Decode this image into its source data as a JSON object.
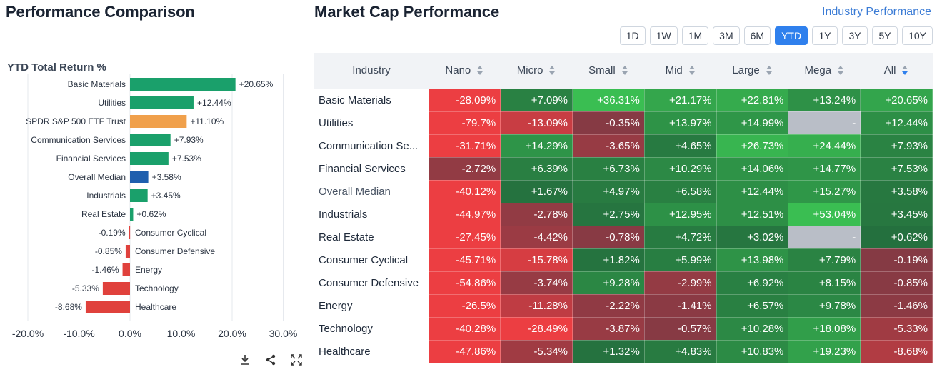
{
  "left": {
    "title": "Performance Comparison",
    "subtitle": "YTD Total Return %",
    "icons": [
      "download-icon",
      "share-icon",
      "expand-icon"
    ]
  },
  "chart_data": {
    "type": "bar",
    "orientation": "horizontal",
    "title": "YTD Total Return %",
    "categories": [
      "Basic Materials",
      "Utilities",
      "SPDR S&P 500 ETF Trust",
      "Communication Services",
      "Financial Services",
      "Overall Median",
      "Industrials",
      "Real Estate",
      "Consumer Cyclical",
      "Consumer Defensive",
      "Energy",
      "Technology",
      "Healthcare"
    ],
    "values": [
      20.65,
      12.44,
      11.1,
      7.93,
      7.53,
      3.58,
      3.45,
      0.62,
      -0.19,
      -0.85,
      -1.46,
      -5.33,
      -8.68
    ],
    "value_labels": [
      "+20.65%",
      "+12.44%",
      "+11.10%",
      "+7.93%",
      "+7.53%",
      "+3.58%",
      "+3.45%",
      "+0.62%",
      "-0.19%",
      "-0.85%",
      "-1.46%",
      "-5.33%",
      "-8.68%"
    ],
    "bar_colors": [
      "#1aa06b",
      "#1aa06b",
      "#f0a04b",
      "#1aa06b",
      "#1aa06b",
      "#1f5fae",
      "#1aa06b",
      "#1aa06b",
      "#e0413c",
      "#e0413c",
      "#e0413c",
      "#e0413c",
      "#e0413c"
    ],
    "xlim": [
      -20,
      30
    ],
    "xticks": [
      -20,
      -10,
      0,
      10,
      20,
      30
    ],
    "xtick_labels": [
      "-20.0%",
      "-10.0%",
      "0.0%",
      "10.0%",
      "20.0%",
      "30.0%"
    ],
    "grid": true
  },
  "right": {
    "title": "Market Cap Performance",
    "link": "Industry Performance",
    "periods": [
      "1D",
      "1W",
      "1M",
      "3M",
      "6M",
      "YTD",
      "1Y",
      "3Y",
      "5Y",
      "10Y"
    ],
    "active_period": "YTD",
    "columns": [
      "Industry",
      "Nano",
      "Micro",
      "Small",
      "Mid",
      "Large",
      "Mega",
      "All"
    ],
    "rows": [
      {
        "name": "Basic Materials",
        "values": [
          "-28.09%",
          "+7.09%",
          "+36.31%",
          "+21.17%",
          "+22.81%",
          "+13.24%",
          "+20.65%"
        ],
        "nums": [
          -28.09,
          7.09,
          36.31,
          21.17,
          22.81,
          13.24,
          20.65
        ]
      },
      {
        "name": "Utilities",
        "values": [
          "-79.7%",
          "-13.09%",
          "-0.35%",
          "+13.97%",
          "+14.99%",
          "-",
          "+12.44%"
        ],
        "nums": [
          -79.7,
          -13.09,
          -0.35,
          13.97,
          14.99,
          null,
          12.44
        ]
      },
      {
        "name": "Communication Se...",
        "values": [
          "-31.71%",
          "+14.29%",
          "-3.65%",
          "+4.65%",
          "+26.73%",
          "+24.44%",
          "+7.93%"
        ],
        "nums": [
          -31.71,
          14.29,
          -3.65,
          4.65,
          26.73,
          24.44,
          7.93
        ]
      },
      {
        "name": "Financial Services",
        "values": [
          "-2.72%",
          "+6.39%",
          "+6.73%",
          "+10.29%",
          "+14.06%",
          "+14.77%",
          "+7.53%"
        ],
        "nums": [
          -2.72,
          6.39,
          6.73,
          10.29,
          14.06,
          14.77,
          7.53
        ]
      },
      {
        "name": "Overall Median",
        "values": [
          "-40.12%",
          "+1.67%",
          "+4.97%",
          "+6.58%",
          "+12.44%",
          "+15.27%",
          "+3.58%"
        ],
        "nums": [
          -40.12,
          1.67,
          4.97,
          6.58,
          12.44,
          15.27,
          3.58
        ],
        "muted": true
      },
      {
        "name": "Industrials",
        "values": [
          "-44.97%",
          "-2.78%",
          "+2.75%",
          "+12.95%",
          "+12.51%",
          "+53.04%",
          "+3.45%"
        ],
        "nums": [
          -44.97,
          -2.78,
          2.75,
          12.95,
          12.51,
          53.04,
          3.45
        ]
      },
      {
        "name": "Real Estate",
        "values": [
          "-27.45%",
          "-4.42%",
          "-0.78%",
          "+4.72%",
          "+3.02%",
          "-",
          "+0.62%"
        ],
        "nums": [
          -27.45,
          -4.42,
          -0.78,
          4.72,
          3.02,
          null,
          0.62
        ]
      },
      {
        "name": "Consumer Cyclical",
        "values": [
          "-45.71%",
          "-15.78%",
          "+1.82%",
          "+5.99%",
          "+13.98%",
          "+7.79%",
          "-0.19%"
        ],
        "nums": [
          -45.71,
          -15.78,
          1.82,
          5.99,
          13.98,
          7.79,
          -0.19
        ]
      },
      {
        "name": "Consumer Defensive",
        "values": [
          "-54.86%",
          "-3.74%",
          "+9.28%",
          "-2.99%",
          "+6.92%",
          "+8.15%",
          "-0.85%"
        ],
        "nums": [
          -54.86,
          -3.74,
          9.28,
          -2.99,
          6.92,
          8.15,
          -0.85
        ]
      },
      {
        "name": "Energy",
        "values": [
          "-26.5%",
          "-11.28%",
          "-2.22%",
          "-1.41%",
          "+6.57%",
          "+9.78%",
          "-1.46%"
        ],
        "nums": [
          -26.5,
          -11.28,
          -2.22,
          -1.41,
          6.57,
          9.78,
          -1.46
        ]
      },
      {
        "name": "Technology",
        "values": [
          "-40.28%",
          "-28.49%",
          "-3.87%",
          "-0.57%",
          "+10.28%",
          "+18.08%",
          "-5.33%"
        ],
        "nums": [
          -40.28,
          -28.49,
          -3.87,
          -0.57,
          10.28,
          18.08,
          -5.33
        ]
      },
      {
        "name": "Healthcare",
        "values": [
          "-47.86%",
          "-5.34%",
          "+1.32%",
          "+4.83%",
          "+10.83%",
          "+19.23%",
          "-8.68%"
        ],
        "nums": [
          -47.86,
          -5.34,
          1.32,
          4.83,
          10.83,
          19.23,
          -8.68
        ]
      }
    ]
  },
  "colors": {
    "accent": "#2f80ed",
    "positive_bar": "#1aa06b",
    "negative_bar": "#e0413c",
    "benchmark_bar": "#f0a04b",
    "median_bar": "#1f5fae",
    "empty_cell": "#b9bec7"
  }
}
